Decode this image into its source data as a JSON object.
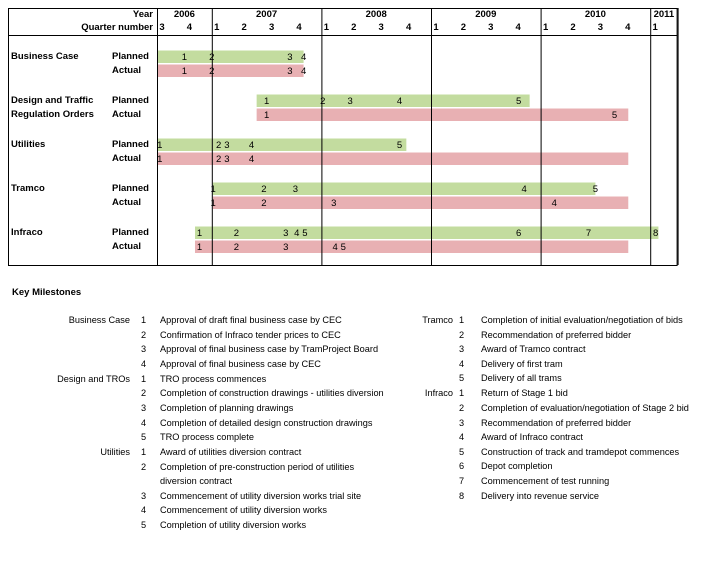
{
  "chart_data": {
    "type": "gantt",
    "header": {
      "year_label": "Year",
      "quarter_label": "Quarter number",
      "periods": [
        {
          "year": "2006",
          "quarters": [
            "3",
            "4"
          ]
        },
        {
          "year": "2007",
          "quarters": [
            "1",
            "2",
            "3",
            "4"
          ]
        },
        {
          "year": "2008",
          "quarters": [
            "1",
            "2",
            "3",
            "4"
          ]
        },
        {
          "year": "2009",
          "quarters": [
            "1",
            "2",
            "3",
            "4"
          ]
        },
        {
          "year": "2010",
          "quarters": [
            "1",
            "2",
            "3",
            "4"
          ]
        },
        {
          "year": "2011",
          "quarters": [
            "1"
          ]
        }
      ]
    },
    "planned_label": "Planned",
    "actual_label": "Actual",
    "colors": {
      "planned": "#c3dc9f",
      "actual": "#e8b0b3",
      "grid": "#000000"
    },
    "rows": [
      {
        "name": "Business Case",
        "planned": {
          "bar": [
            0,
            5.35
          ],
          "markers": [
            {
              "label": "1",
              "q": 1
            },
            {
              "label": "2",
              "q": 2
            },
            {
              "label": "3",
              "q": 4.85
            },
            {
              "label": "4",
              "q": 5.35
            }
          ]
        },
        "actual": {
          "bar": [
            0,
            5.35
          ],
          "markers": [
            {
              "label": "1",
              "q": 1
            },
            {
              "label": "2",
              "q": 2
            },
            {
              "label": "3",
              "q": 4.85
            },
            {
              "label": "4",
              "q": 5.35
            }
          ]
        }
      },
      {
        "name": "Design and Traffic Regulation Orders",
        "planned": {
          "bar": [
            3.6,
            13.6
          ],
          "markers": [
            {
              "label": "1",
              "q": 4
            },
            {
              "label": "2",
              "q": 6.05
            },
            {
              "label": "3",
              "q": 7.05
            },
            {
              "label": "4",
              "q": 8.85
            },
            {
              "label": "5",
              "q": 13.2
            }
          ]
        },
        "actual": {
          "bar": [
            3.6,
            17.2
          ],
          "markers": [
            {
              "label": "1",
              "q": 4
            },
            {
              "label": "5",
              "q": 16.7
            }
          ]
        }
      },
      {
        "name": "Utilities",
        "planned": {
          "bar": [
            0,
            9.1
          ],
          "markers": [
            {
              "label": "1",
              "q": 0.1
            },
            {
              "label": "2",
              "q": 2.25
            },
            {
              "label": "3",
              "q": 2.55
            },
            {
              "label": "4",
              "q": 3.45
            },
            {
              "label": "5",
              "q": 8.85
            }
          ]
        },
        "actual": {
          "bar": [
            0,
            17.2
          ],
          "markers": [
            {
              "label": "1",
              "q": 0.1
            },
            {
              "label": "2",
              "q": 2.25
            },
            {
              "label": "3",
              "q": 2.55
            },
            {
              "label": "4",
              "q": 3.45
            }
          ]
        }
      },
      {
        "name": "Tramco",
        "planned": {
          "bar": [
            2,
            16
          ],
          "markers": [
            {
              "label": "1",
              "q": 2.05
            },
            {
              "label": "2",
              "q": 3.9
            },
            {
              "label": "3",
              "q": 5.05
            },
            {
              "label": "4",
              "q": 13.4
            },
            {
              "label": "5",
              "q": 16
            }
          ]
        },
        "actual": {
          "bar": [
            2,
            17.2
          ],
          "markers": [
            {
              "label": "1",
              "q": 2.05
            },
            {
              "label": "2",
              "q": 3.9
            },
            {
              "label": "3",
              "q": 6.45
            },
            {
              "label": "4",
              "q": 14.5
            }
          ]
        }
      },
      {
        "name": "Infraco",
        "planned": {
          "bar": [
            1.35,
            18.3
          ],
          "markers": [
            {
              "label": "1",
              "q": 1.55
            },
            {
              "label": "2",
              "q": 2.9
            },
            {
              "label": "3",
              "q": 4.7
            },
            {
              "label": "4",
              "q": 5.1
            },
            {
              "label": "5",
              "q": 5.4
            },
            {
              "label": "6",
              "q": 13.2
            },
            {
              "label": "7",
              "q": 15.75
            },
            {
              "label": "8",
              "q": 18.2
            }
          ]
        },
        "actual": {
          "bar": [
            1.35,
            17.2
          ],
          "markers": [
            {
              "label": "1",
              "q": 1.55
            },
            {
              "label": "2",
              "q": 2.9
            },
            {
              "label": "3",
              "q": 4.7
            },
            {
              "label": "4",
              "q": 6.5
            },
            {
              "label": "5",
              "q": 6.8
            }
          ]
        }
      }
    ]
  },
  "milestones": {
    "title": "Key Milestones",
    "left": [
      {
        "category": "Business Case",
        "items": [
          {
            "num": "1",
            "text": "Approval of draft final business case by CEC"
          },
          {
            "num": "2",
            "text": "Confirmation of Infraco tender prices to CEC"
          },
          {
            "num": "3",
            "text": "Approval of final business case by TramProject Board"
          },
          {
            "num": "4",
            "text": "Approval of  final business case by CEC"
          }
        ]
      },
      {
        "category": "Design and TROs",
        "items": [
          {
            "num": "1",
            "text": "TRO process commences"
          },
          {
            "num": "2",
            "text": "Completion of construction drawings - utilities diversion"
          },
          {
            "num": "3",
            "text": "Completion of planning drawings"
          },
          {
            "num": "4",
            "text": "Completion of detailed design construction drawings"
          },
          {
            "num": "5",
            "text": "TRO process complete"
          }
        ]
      },
      {
        "category": "Utilities",
        "items": [
          {
            "num": "1",
            "text": "Award of utilities diversion contract"
          },
          {
            "num": "2",
            "text": "Completion of pre-construction period of utilities",
            "text2": "diversion contract"
          },
          {
            "num": "3",
            "text": "Commencement of utility diversion works trial site"
          },
          {
            "num": "4",
            "text": "Commencement of utility diversion works"
          },
          {
            "num": "5",
            "text": "Completion of utility diversion works"
          }
        ]
      }
    ],
    "right": [
      {
        "category": "Tramco",
        "items": [
          {
            "num": "1",
            "text": "Completion of initial evaluation/negotiation of bids"
          },
          {
            "num": "2",
            "text": "Recommendation of preferred bidder"
          },
          {
            "num": "3",
            "text": "Award of Tramco contract"
          },
          {
            "num": "4",
            "text": "Delivery of first tram"
          },
          {
            "num": "5",
            "text": "Delivery of all trams"
          }
        ]
      },
      {
        "category": "Infraco",
        "items": [
          {
            "num": "1",
            "text": "Return of Stage 1 bid"
          },
          {
            "num": "2",
            "text": "Completion of evaluation/negotiation of Stage 2 bid"
          },
          {
            "num": "3",
            "text": "Recommendation of preferred bidder"
          },
          {
            "num": "4",
            "text": "Award of Infraco contract"
          },
          {
            "num": "5",
            "text": "Construction of track and tramdepot commences"
          },
          {
            "num": "6",
            "text": "Depot completion"
          },
          {
            "num": "7",
            "text": "Commencement of test running"
          },
          {
            "num": "8",
            "text": "Delivery into revenue service"
          }
        ]
      }
    ]
  }
}
